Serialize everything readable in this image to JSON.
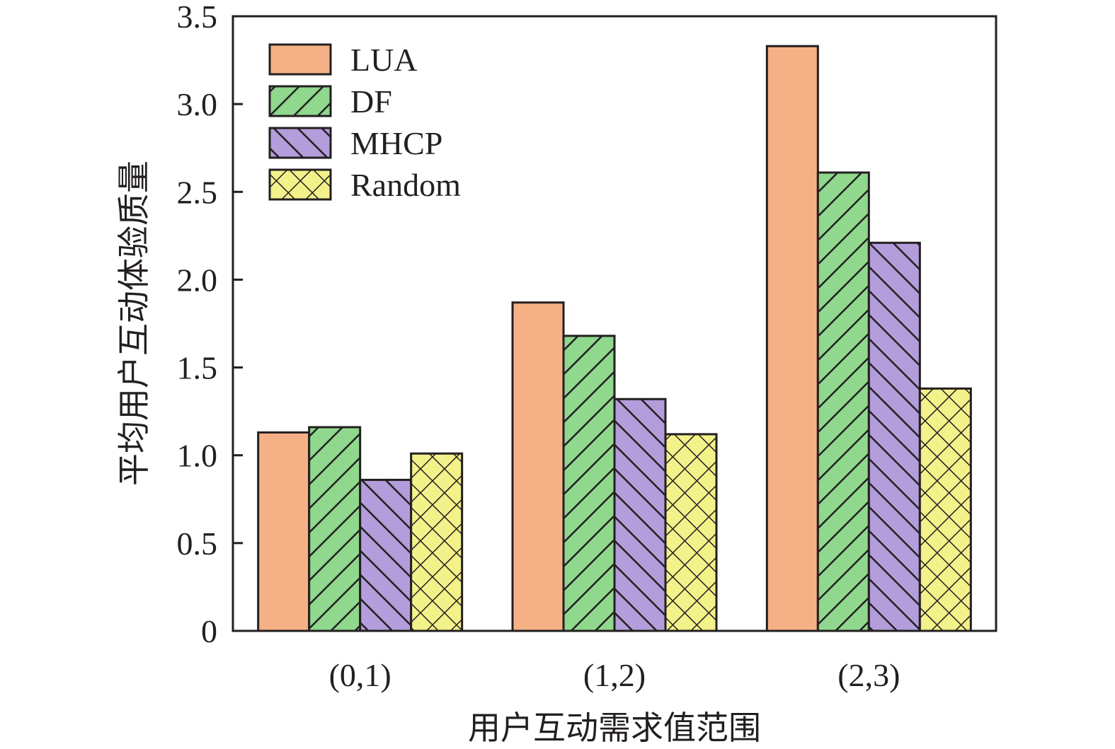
{
  "chart_data": {
    "type": "bar",
    "categories": [
      "(0,1)",
      "(1,2)",
      "(2,3)"
    ],
    "series": [
      {
        "name": "LUA",
        "values": [
          1.13,
          1.87,
          3.33
        ],
        "color": "#f5b185",
        "pattern": "solid"
      },
      {
        "name": "DF",
        "values": [
          1.16,
          1.68,
          2.61
        ],
        "color": "#8fd88d",
        "pattern": "diagonal-forward"
      },
      {
        "name": "MHCP",
        "values": [
          0.86,
          1.32,
          2.21
        ],
        "color": "#b39ddb",
        "pattern": "diagonal-backward"
      },
      {
        "name": "Random",
        "values": [
          1.01,
          1.12,
          1.38
        ],
        "color": "#f3f18a",
        "pattern": "crosshatch"
      }
    ],
    "xlabel": "用户互动需求值范围",
    "ylabel": "平均用户互动体验质量",
    "ylim": [
      0,
      3.5
    ],
    "yticks": [
      "0",
      "0.5",
      "1.0",
      "1.5",
      "2.0",
      "2.5",
      "3.0",
      "3.5"
    ],
    "legend_position": "top-left",
    "grid": false
  }
}
